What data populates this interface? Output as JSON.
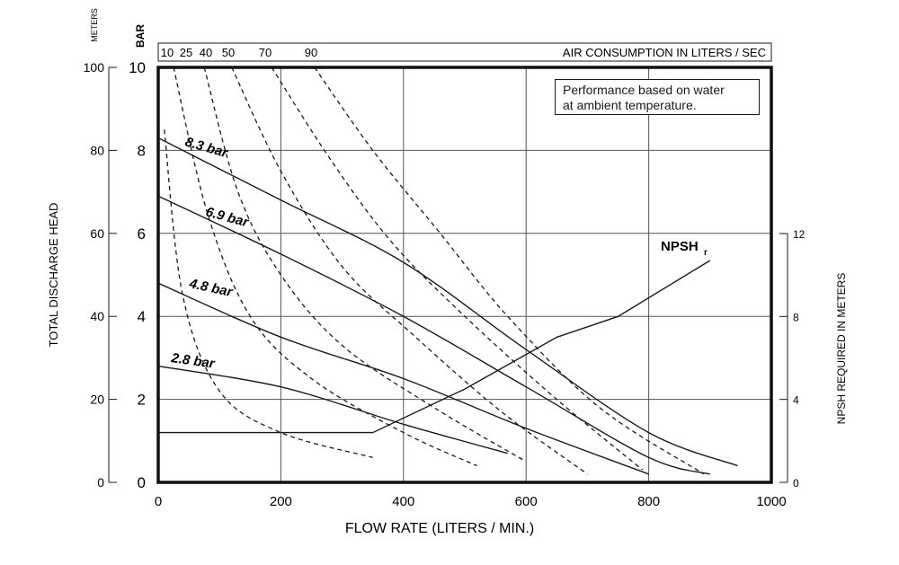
{
  "chart_data": {
    "type": "line",
    "x_axis": {
      "label": "FLOW RATE (LITERS / MIN.)",
      "range": [
        0,
        1000
      ],
      "ticks": [
        0,
        200,
        400,
        600,
        800,
        1000
      ]
    },
    "left_axis_meters": {
      "unit_label": "METERS",
      "label": "TOTAL DISCHARGE HEAD",
      "range": [
        0,
        100
      ],
      "ticks": [
        0,
        20,
        40,
        60,
        80,
        100
      ]
    },
    "left_axis_bar": {
      "unit_label": "BAR",
      "range": [
        0,
        10
      ],
      "ticks": [
        0,
        2,
        4,
        6,
        8,
        10
      ]
    },
    "right_axis": {
      "label": "NPSH REQUIRED IN METERS",
      "range": [
        0,
        12
      ],
      "ticks": [
        0,
        4,
        8,
        12
      ]
    },
    "top_axis": {
      "label": "AIR CONSUMPTION IN LITERS / SEC",
      "ticks": [
        "10",
        "25",
        "40",
        "50",
        "70",
        "90"
      ]
    },
    "grid": true,
    "note": [
      "Performance based on water",
      "at ambient temperature."
    ],
    "pressure_curves": [
      {
        "label": "8.3 bar",
        "points": [
          [
            0,
            83
          ],
          [
            200,
            68
          ],
          [
            400,
            53
          ],
          [
            600,
            32
          ],
          [
            800,
            12
          ],
          [
            945,
            4
          ]
        ]
      },
      {
        "label": "6.9 bar",
        "points": [
          [
            0,
            69
          ],
          [
            200,
            55
          ],
          [
            400,
            40
          ],
          [
            600,
            23
          ],
          [
            800,
            6
          ],
          [
            900,
            2
          ]
        ]
      },
      {
        "label": "4.8 bar",
        "points": [
          [
            0,
            48
          ],
          [
            200,
            35
          ],
          [
            400,
            25
          ],
          [
            600,
            13
          ],
          [
            800,
            2
          ]
        ]
      },
      {
        "label": "2.8 bar",
        "points": [
          [
            0,
            28
          ],
          [
            200,
            23
          ],
          [
            400,
            14
          ],
          [
            570,
            7
          ]
        ]
      }
    ],
    "air_curves": [
      {
        "label": "10",
        "points": [
          [
            10,
            85
          ],
          [
            40,
            45
          ],
          [
            100,
            22
          ],
          [
            200,
            12
          ],
          [
            350,
            6
          ]
        ]
      },
      {
        "label": "25",
        "points": [
          [
            25,
            100
          ],
          [
            80,
            65
          ],
          [
            150,
            40
          ],
          [
            250,
            25
          ],
          [
            400,
            12
          ],
          [
            520,
            4
          ]
        ]
      },
      {
        "label": "40",
        "points": [
          [
            75,
            100
          ],
          [
            130,
            70
          ],
          [
            200,
            50
          ],
          [
            300,
            33
          ],
          [
            450,
            18
          ],
          [
            600,
            5
          ]
        ]
      },
      {
        "label": "50",
        "points": [
          [
            120,
            100
          ],
          [
            200,
            75
          ],
          [
            300,
            52
          ],
          [
            420,
            35
          ],
          [
            560,
            17
          ],
          [
            700,
            2
          ]
        ]
      },
      {
        "label": "70",
        "points": [
          [
            185,
            100
          ],
          [
            280,
            78
          ],
          [
            380,
            58
          ],
          [
            500,
            40
          ],
          [
            650,
            20
          ],
          [
            790,
            3
          ]
        ]
      },
      {
        "label": "90",
        "points": [
          [
            255,
            100
          ],
          [
            350,
            80
          ],
          [
            460,
            60
          ],
          [
            570,
            40
          ],
          [
            720,
            18
          ],
          [
            890,
            2
          ]
        ]
      }
    ],
    "npsh": {
      "label": "NPSH",
      "subscript": "r",
      "points": [
        [
          0,
          2.4
        ],
        [
          350,
          2.4
        ],
        [
          500,
          4.5
        ],
        [
          650,
          7.0
        ],
        [
          750,
          8.0
        ],
        [
          900,
          10.7
        ]
      ]
    }
  }
}
